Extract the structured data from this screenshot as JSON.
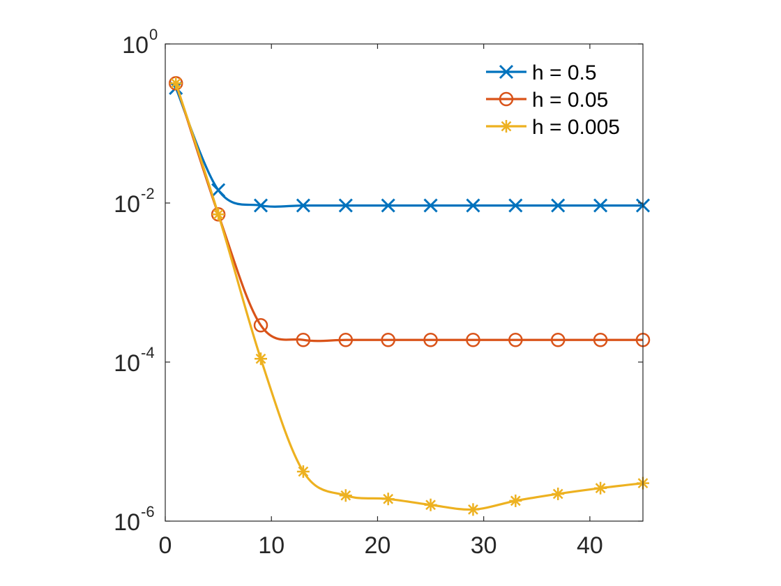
{
  "chart_data": {
    "type": "line",
    "title": "",
    "xlabel": "",
    "ylabel": "",
    "y_scale": "log",
    "xlim": [
      0,
      45
    ],
    "ylim": [
      1e-06,
      1
    ],
    "x_ticks": [
      0,
      10,
      20,
      30,
      40
    ],
    "x_tick_labels": [
      "0",
      "10",
      "20",
      "30",
      "40"
    ],
    "y_ticks": [
      {
        "value": 1,
        "base": "10",
        "exponent": "0"
      },
      {
        "value": 0.01,
        "base": "10",
        "exponent": "-2"
      },
      {
        "value": 0.0001,
        "base": "10",
        "exponent": "-4"
      },
      {
        "value": 1e-06,
        "base": "10",
        "exponent": "-6"
      }
    ],
    "grid": false,
    "legend_position": "top-right",
    "x": [
      1,
      5,
      9,
      13,
      17,
      21,
      25,
      29,
      33,
      37,
      41,
      45
    ],
    "series": [
      {
        "name": "h = 0.5",
        "marker": "x",
        "color": "#0072BD",
        "values": [
          0.28,
          0.0145,
          0.0093,
          0.0093,
          0.0093,
          0.0093,
          0.0093,
          0.0093,
          0.0093,
          0.0093,
          0.0093,
          0.0093
        ]
      },
      {
        "name": "h = 0.05",
        "marker": "circle",
        "color": "#D95319",
        "values": [
          0.32,
          0.0072,
          0.00029,
          0.00019,
          0.00019,
          0.00019,
          0.00019,
          0.00019,
          0.00019,
          0.00019,
          0.00019,
          0.00019
        ]
      },
      {
        "name": "h = 0.005",
        "marker": "asterisk",
        "color": "#EDB120",
        "values": [
          0.32,
          0.0072,
          0.00011,
          4.2e-06,
          2.1e-06,
          1.9e-06,
          1.6e-06,
          1.4e-06,
          1.8e-06,
          2.2e-06,
          2.6e-06,
          3e-06
        ]
      }
    ]
  }
}
